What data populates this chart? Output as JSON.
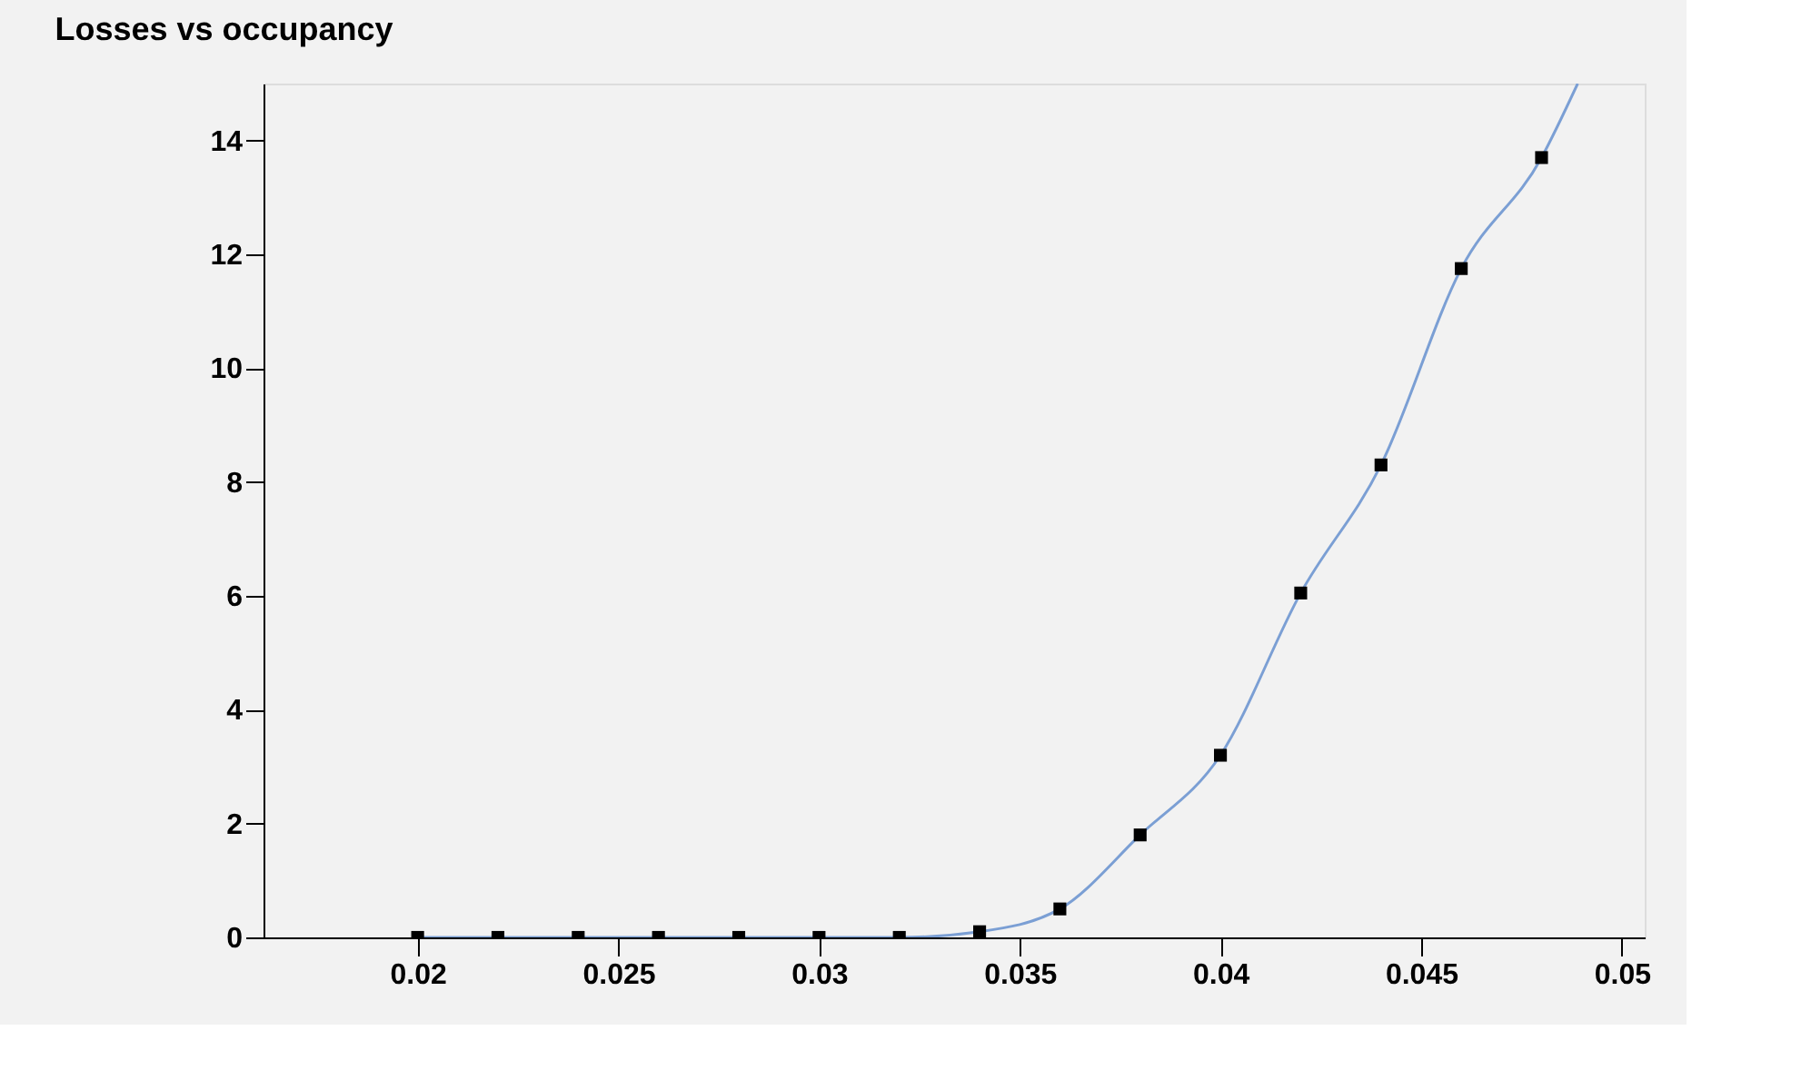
{
  "chart_data": {
    "type": "scatter",
    "title": "Losses vs occupancy",
    "xlim": [
      0.01616,
      0.05057
    ],
    "xticks": [
      0.02,
      0.025,
      0.03,
      0.035,
      0.04,
      0.045,
      0.05
    ],
    "ylim": [
      0,
      15
    ],
    "yticks": [
      0,
      2,
      4,
      6,
      8,
      10,
      12,
      14
    ],
    "grid": false,
    "series": [
      {
        "type": "line",
        "color": "#7b9fd4",
        "line_style": "solid",
        "marker": "none",
        "x": [
          0.02,
          0.022,
          0.024,
          0.026,
          0.028,
          0.03,
          0.032,
          0.034,
          0.036,
          0.038,
          0.04,
          0.042,
          0.044,
          0.046,
          0.048,
          0.0489
        ],
        "values": [
          0,
          0,
          0,
          0,
          0,
          0,
          0,
          0.1,
          0.5,
          1.8,
          3.2,
          6.05,
          8.3,
          11.75,
          13.7,
          15
        ]
      },
      {
        "color": "#000000",
        "marker": "square",
        "x": [
          0.02,
          0.022,
          0.024,
          0.026,
          0.028,
          0.03,
          0.032,
          0.034,
          0.036,
          0.038,
          0.04,
          0.042,
          0.044,
          0.046,
          0.048
        ],
        "values": [
          0,
          0,
          0,
          0,
          0,
          0,
          0,
          0.1,
          0.5,
          1.8,
          3.2,
          6.05,
          8.3,
          11.75,
          13.7
        ]
      }
    ]
  }
}
